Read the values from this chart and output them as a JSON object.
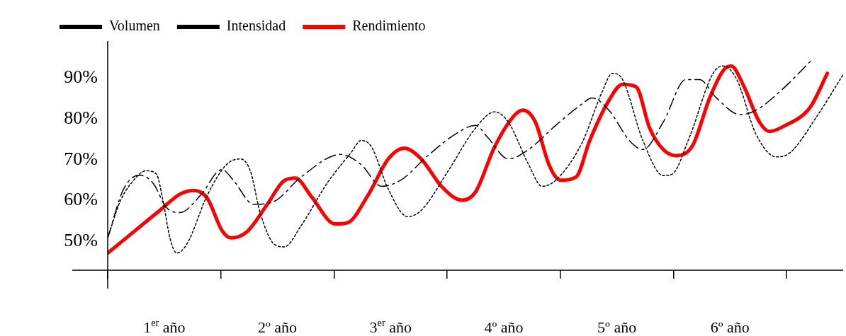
{
  "chart_data": {
    "type": "line",
    "xlim": [
      0,
      6.5
    ],
    "ylim": [
      43,
      99
    ],
    "xticks": [
      {
        "value": 0,
        "label": null
      },
      {
        "value": 1,
        "label": null
      },
      {
        "value": 2,
        "label": null
      },
      {
        "value": 3,
        "label": null
      },
      {
        "value": 4,
        "label": null
      },
      {
        "value": 5,
        "label": null
      },
      {
        "value": 6,
        "label": null
      },
      {
        "value": 0.5,
        "label": "1$^{er}$ año"
      },
      {
        "value": 1.5,
        "label": "2º año"
      },
      {
        "value": 2.5,
        "label": "3$^{er}$ año"
      },
      {
        "value": 3.5,
        "label": "4º año"
      },
      {
        "value": 4.5,
        "label": "5º año"
      },
      {
        "value": 5.5,
        "label": "6º año"
      }
    ],
    "yticks": [
      {
        "value": 50,
        "label": "50%"
      },
      {
        "value": 60,
        "label": "60%"
      },
      {
        "value": 70,
        "label": "70%"
      },
      {
        "value": 80,
        "label": "80%"
      },
      {
        "value": 90,
        "label": "90%"
      }
    ],
    "grid": false,
    "legend": "top left",
    "marker": "none",
    "series": [
      {
        "name": "Volumen",
        "color": "#000000",
        "line_style": "dashdot",
        "x": [
          0,
          0.14,
          0.28,
          0.4,
          0.52,
          0.64,
          0.82,
          1.01,
          1.11,
          1.29,
          1.47,
          1.71,
          2.06,
          2.24,
          2.42,
          2.59,
          2.83,
          3.07,
          3.25,
          3.36,
          3.54,
          3.72,
          3.96,
          4.19,
          4.28,
          4.43,
          4.61,
          4.73,
          4.91,
          5.11,
          5.23,
          5.38,
          5.59,
          5.73,
          5.97,
          6.21
        ],
        "values": [
          50.9,
          62.8,
          66.2,
          64.3,
          58.3,
          57.1,
          61.3,
          67.6,
          65.0,
          59.1,
          59.8,
          65.8,
          71.3,
          68.8,
          63.5,
          65.0,
          71.0,
          76.2,
          78.4,
          75.4,
          70.2,
          72.5,
          78.4,
          83.6,
          85.1,
          82.1,
          74.7,
          72.5,
          79.2,
          89.6,
          89.6,
          85.1,
          81.0,
          82.1,
          87.4,
          94.0
        ]
      },
      {
        "name": "Intensidad",
        "color": "#000000",
        "line_style": "dotted",
        "x": [
          0,
          0.11,
          0.23,
          0.34,
          0.43,
          0.49,
          0.55,
          0.61,
          0.7,
          0.88,
          1.05,
          1.17,
          1.26,
          1.35,
          1.47,
          1.56,
          1.71,
          1.94,
          2.15,
          2.24,
          2.33,
          2.48,
          2.65,
          2.77,
          3.01,
          3.25,
          3.42,
          3.54,
          3.72,
          3.84,
          3.96,
          4.19,
          4.37,
          4.46,
          4.55,
          4.73,
          4.91,
          4.99,
          5.14,
          5.35,
          5.44,
          5.56,
          5.73,
          5.91,
          6.03,
          6.27,
          6.5
        ],
        "values": [
          50.9,
          59.8,
          65.0,
          67.3,
          66.5,
          59.8,
          50.9,
          47.2,
          49.4,
          61.3,
          68.8,
          70.2,
          67.3,
          56.8,
          49.4,
          48.7,
          53.9,
          64.3,
          71.7,
          74.7,
          73.2,
          62.8,
          56.1,
          57.6,
          67.3,
          77.7,
          81.7,
          79.2,
          68.8,
          63.5,
          65.0,
          74.0,
          86.6,
          91.1,
          89.6,
          74.7,
          66.1,
          66.5,
          75.4,
          91.1,
          92.9,
          89.6,
          76.2,
          70.7,
          71.7,
          80.7,
          90.8
        ]
      },
      {
        "name": "Rendimiento",
        "color": "#ff0000",
        "line_style": "solid",
        "x": [
          0,
          0.23,
          0.46,
          0.64,
          0.76,
          0.88,
          1.01,
          1.09,
          1.23,
          1.41,
          1.56,
          1.66,
          1.8,
          2.01,
          2.12,
          2.3,
          2.48,
          2.62,
          2.77,
          2.95,
          3.13,
          3.25,
          3.42,
          3.6,
          3.67,
          3.78,
          3.9,
          4.0,
          4.14,
          4.26,
          4.43,
          4.55,
          4.67,
          4.79,
          4.91,
          5.02,
          5.17,
          5.32,
          5.44,
          5.51,
          5.62,
          5.76,
          5.85,
          5.97,
          6.21,
          6.36
        ],
        "values": [
          47.2,
          52.4,
          57.6,
          61.6,
          62.5,
          60.6,
          52.7,
          50.9,
          52.4,
          59.1,
          64.9,
          65.5,
          61.0,
          54.3,
          54.6,
          61.3,
          70.2,
          72.8,
          70.2,
          63.5,
          60.1,
          62.1,
          73.2,
          81.0,
          82.1,
          79.2,
          68.8,
          65.0,
          65.8,
          74.7,
          84.5,
          88.4,
          87.8,
          77.7,
          72.5,
          71.0,
          73.5,
          85.1,
          91.8,
          92.9,
          88.1,
          79.2,
          76.9,
          78.1,
          82.9,
          91.1
        ]
      }
    ]
  }
}
